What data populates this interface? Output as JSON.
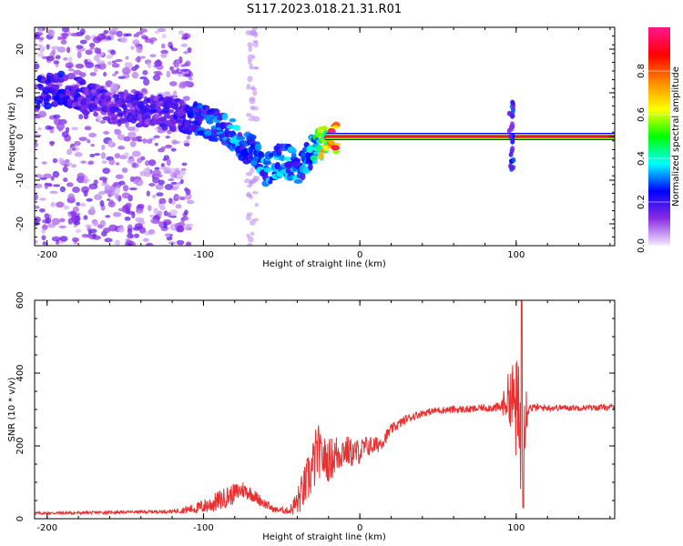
{
  "figure": {
    "title": "S117.2023.018.21.31.R01"
  },
  "chart_data": [
    {
      "type": "heatmap",
      "xlabel": "Height of straight line (km)",
      "ylabel": "Frequency (Hz)",
      "xlim": [
        -208,
        163
      ],
      "ylim": [
        -25,
        25
      ],
      "x_ticks": [
        -200,
        -100,
        0,
        100
      ],
      "y_ticks": [
        20,
        10,
        0,
        -10,
        -20
      ],
      "colorbar": {
        "label": "Normalized spectral amplitude",
        "range": [
          0,
          1
        ],
        "ticks": [
          0.0,
          0.2,
          0.4,
          0.6,
          0.8
        ],
        "colors": [
          "#f4ecff",
          "#8a2be2",
          "#0000ff",
          "#00ffff",
          "#00ff00",
          "#ffff00",
          "#ff8800",
          "#ff0000",
          "#ff1493"
        ]
      },
      "ridge": {
        "x": [
          -205,
          -190,
          -175,
          -160,
          -140,
          -120,
          -100,
          -90,
          -80,
          -70,
          -60,
          -50,
          -40,
          -30,
          -20,
          -10,
          0,
          10,
          40,
          70,
          95,
          100,
          110,
          130,
          163
        ],
        "freq": [
          10,
          11,
          9,
          7,
          6,
          5,
          4,
          2,
          0,
          -3,
          -8,
          -5,
          -7,
          -3,
          0,
          0,
          1,
          0,
          0,
          0,
          0,
          0,
          0,
          0,
          0
        ],
        "amplitude": [
          0.25,
          0.25,
          0.2,
          0.2,
          0.2,
          0.2,
          0.3,
          0.3,
          0.35,
          0.3,
          0.35,
          0.35,
          0.35,
          0.4,
          0.9,
          0.9,
          0.9,
          0.95,
          0.95,
          0.95,
          0.9,
          0.6,
          0.95,
          0.95,
          0.95
        ]
      },
      "scatter_region_x": [
        -208,
        -108
      ],
      "scatter_region_freq": [
        -25,
        25
      ]
    },
    {
      "type": "line",
      "xlabel": "Height of straight line (km)",
      "ylabel": "SNR (10 * v/v)",
      "xlim": [
        -208,
        163
      ],
      "ylim": [
        0,
        600
      ],
      "x_ticks": [
        -200,
        -100,
        0,
        100
      ],
      "y_ticks": [
        0,
        200,
        400,
        600
      ],
      "line_color": "#e83030",
      "series": [
        {
          "x": [
            -208,
            -180,
            -150,
            -120,
            -105,
            -95,
            -85,
            -75,
            -70,
            -62,
            -55,
            -45,
            -40,
            -35,
            -30,
            -27,
            -25,
            -20,
            -15,
            -10,
            -5,
            0,
            5,
            10,
            15,
            20,
            30,
            40,
            50,
            60,
            70,
            80,
            90,
            96,
            100,
            103,
            105,
            108,
            115,
            130,
            150,
            163
          ],
          "y": [
            15,
            16,
            18,
            20,
            28,
            40,
            60,
            80,
            70,
            45,
            25,
            22,
            45,
            90,
            140,
            190,
            170,
            160,
            175,
            190,
            180,
            185,
            200,
            200,
            215,
            245,
            275,
            290,
            298,
            300,
            300,
            305,
            305,
            340,
            300,
            230,
            300,
            305,
            305,
            305,
            305,
            307
          ],
          "noise": [
            4,
            4,
            4,
            5,
            15,
            25,
            30,
            25,
            20,
            15,
            8,
            10,
            40,
            60,
            80,
            80,
            60,
            60,
            60,
            45,
            40,
            35,
            30,
            25,
            20,
            15,
            12,
            10,
            10,
            10,
            10,
            10,
            15,
            80,
            150,
            180,
            150,
            12,
            10,
            8,
            8,
            8
          ]
        }
      ]
    }
  ]
}
